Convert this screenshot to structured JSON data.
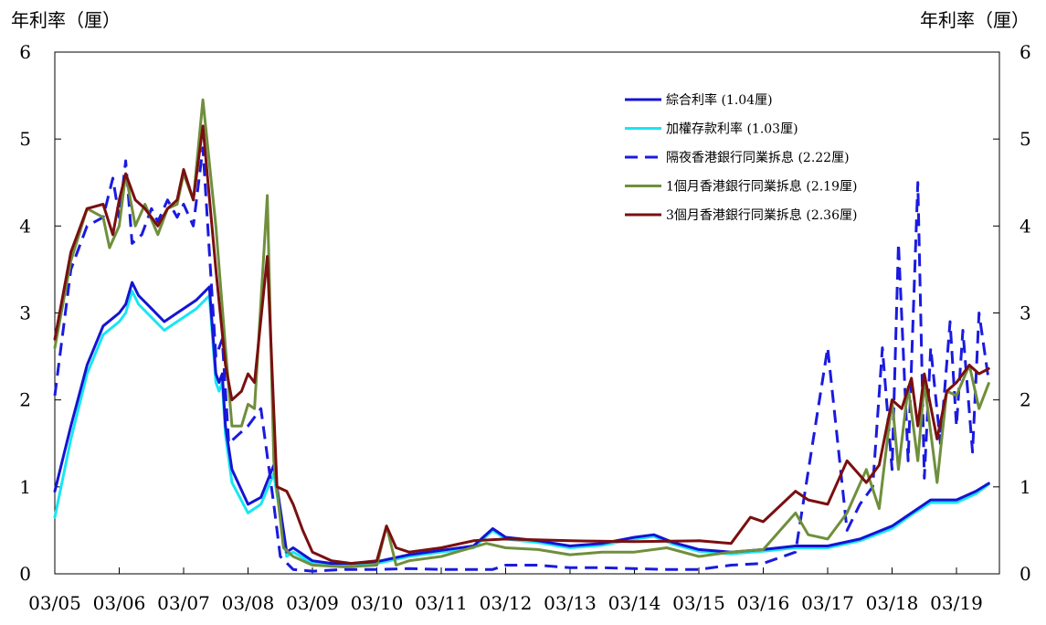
{
  "chart_data": {
    "type": "line",
    "ylabel_left": "年利率（厘）",
    "ylabel_right": "年利率（厘）",
    "ylim": [
      0,
      6
    ],
    "yticks": [
      0,
      1,
      2,
      3,
      4,
      5,
      6
    ],
    "xlim": [
      0,
      14.5
    ],
    "categories": [
      "03/05",
      "03/06",
      "03/07",
      "03/08",
      "03/09",
      "03/10",
      "03/11",
      "03/12",
      "03/13",
      "03/14",
      "03/15",
      "03/16",
      "03/17",
      "03/18",
      "03/19"
    ],
    "grid": false,
    "legend_position": "top-right",
    "colors": {
      "composite": "#1414d2",
      "weighted_deposit": "#18e6f4",
      "overnight": "#1a1ae0",
      "one_month": "#6f8f3c",
      "three_month": "#7a0f10"
    },
    "series": [
      {
        "name": "綜合利率 (1.04厘)",
        "key": "composite",
        "style": "solid",
        "x": [
          0,
          0.25,
          0.5,
          0.75,
          1.0,
          1.1,
          1.2,
          1.3,
          1.5,
          1.7,
          1.9,
          2.0,
          2.2,
          2.4,
          2.5,
          2.55,
          2.6,
          2.65,
          2.75,
          3.0,
          3.2,
          3.4,
          3.6,
          3.7,
          4.0,
          4.3,
          4.6,
          5.0,
          5.5,
          6.0,
          6.5,
          6.8,
          7.0,
          7.5,
          8.0,
          8.5,
          9.0,
          9.3,
          9.6,
          10.0,
          10.5,
          11.0,
          11.5,
          12.0,
          12.5,
          13.0,
          13.3,
          13.6,
          14.0,
          14.3,
          14.5
        ],
        "values": [
          0.95,
          1.7,
          2.4,
          2.85,
          3.0,
          3.1,
          3.35,
          3.2,
          3.05,
          2.9,
          3.0,
          3.05,
          3.15,
          3.3,
          2.3,
          2.2,
          2.3,
          1.7,
          1.2,
          0.8,
          0.88,
          1.25,
          0.25,
          0.3,
          0.15,
          0.12,
          0.12,
          0.14,
          0.22,
          0.27,
          0.32,
          0.52,
          0.42,
          0.38,
          0.32,
          0.35,
          0.42,
          0.45,
          0.36,
          0.28,
          0.25,
          0.28,
          0.32,
          0.32,
          0.4,
          0.55,
          0.7,
          0.85,
          0.85,
          0.95,
          1.04
        ]
      },
      {
        "name": "加權存款利率 (1.03厘)",
        "key": "weighted_deposit",
        "style": "solid",
        "x": [
          0,
          0.25,
          0.5,
          0.75,
          1.0,
          1.1,
          1.2,
          1.3,
          1.5,
          1.7,
          1.9,
          2.0,
          2.2,
          2.4,
          2.5,
          2.55,
          2.6,
          2.65,
          2.75,
          3.0,
          3.2,
          3.4,
          3.6,
          3.7,
          4.0,
          4.3,
          4.6,
          5.0,
          5.5,
          6.0,
          6.5,
          6.8,
          7.0,
          7.5,
          8.0,
          8.5,
          9.0,
          9.3,
          9.6,
          10.0,
          10.5,
          11.0,
          11.5,
          12.0,
          12.5,
          13.0,
          13.3,
          13.6,
          14.0,
          14.3,
          14.5
        ],
        "values": [
          0.65,
          1.55,
          2.3,
          2.75,
          2.9,
          3.0,
          3.25,
          3.1,
          2.95,
          2.8,
          2.9,
          2.95,
          3.05,
          3.2,
          2.2,
          2.1,
          2.2,
          1.6,
          1.05,
          0.7,
          0.8,
          1.15,
          0.2,
          0.25,
          0.12,
          0.1,
          0.1,
          0.12,
          0.2,
          0.25,
          0.3,
          0.5,
          0.4,
          0.36,
          0.3,
          0.33,
          0.4,
          0.43,
          0.34,
          0.26,
          0.23,
          0.26,
          0.3,
          0.3,
          0.38,
          0.52,
          0.68,
          0.82,
          0.82,
          0.92,
          1.03
        ]
      },
      {
        "name": "隔夜香港銀行同業拆息 (2.22厘)",
        "key": "overnight",
        "style": "dashed",
        "x": [
          0,
          0.25,
          0.5,
          0.75,
          0.9,
          1.0,
          1.1,
          1.2,
          1.35,
          1.5,
          1.6,
          1.75,
          1.9,
          2.0,
          2.15,
          2.3,
          2.5,
          2.6,
          2.7,
          2.85,
          3.0,
          3.2,
          3.4,
          3.5,
          3.7,
          4.0,
          4.5,
          5.0,
          5.5,
          6.0,
          6.5,
          6.8,
          7.0,
          7.5,
          8.0,
          8.5,
          9.0,
          9.5,
          10.0,
          10.5,
          11.0,
          11.5,
          12.0,
          12.3,
          12.5,
          12.7,
          12.85,
          13.0,
          13.1,
          13.25,
          13.4,
          13.5,
          13.6,
          13.75,
          13.9,
          14.0,
          14.1,
          14.25,
          14.35,
          14.5
        ],
        "values": [
          2.05,
          3.5,
          4.0,
          4.1,
          4.55,
          4.1,
          4.75,
          3.8,
          3.9,
          4.2,
          4.05,
          4.3,
          4.1,
          4.25,
          4.0,
          4.9,
          2.5,
          2.7,
          1.5,
          1.6,
          1.7,
          1.9,
          0.8,
          0.2,
          0.05,
          0.03,
          0.05,
          0.05,
          0.06,
          0.05,
          0.05,
          0.05,
          0.1,
          0.1,
          0.07,
          0.07,
          0.06,
          0.05,
          0.05,
          0.1,
          0.12,
          0.25,
          2.6,
          0.5,
          0.8,
          1.0,
          2.6,
          1.2,
          3.8,
          1.3,
          4.5,
          1.1,
          2.6,
          1.5,
          2.9,
          1.7,
          2.8,
          1.4,
          3.0,
          2.22
        ]
      },
      {
        "name": "1個月香港銀行同業拆息 (2.19厘)",
        "key": "one_month",
        "style": "solid",
        "x": [
          0,
          0.25,
          0.5,
          0.75,
          0.85,
          1.0,
          1.1,
          1.25,
          1.4,
          1.6,
          1.75,
          1.9,
          2.0,
          2.15,
          2.3,
          2.5,
          2.65,
          2.75,
          2.9,
          3.0,
          3.1,
          3.3,
          3.4,
          3.55,
          3.7,
          4.0,
          4.5,
          5.0,
          5.15,
          5.3,
          5.5,
          6.0,
          6.7,
          7.0,
          7.5,
          8.0,
          8.5,
          9.0,
          9.5,
          10.0,
          10.5,
          11.0,
          11.5,
          11.7,
          12.0,
          12.3,
          12.6,
          12.8,
          13.0,
          13.1,
          13.25,
          13.4,
          13.5,
          13.7,
          13.85,
          14.0,
          14.2,
          14.35,
          14.5
        ],
        "values": [
          2.6,
          3.6,
          4.2,
          4.1,
          3.75,
          4.0,
          4.6,
          4.0,
          4.25,
          3.9,
          4.2,
          4.25,
          4.6,
          4.3,
          5.45,
          4.0,
          2.6,
          1.7,
          1.7,
          1.95,
          1.9,
          4.35,
          1.3,
          0.3,
          0.2,
          0.1,
          0.08,
          0.1,
          0.55,
          0.1,
          0.15,
          0.2,
          0.35,
          0.3,
          0.28,
          0.22,
          0.25,
          0.25,
          0.3,
          0.2,
          0.25,
          0.28,
          0.7,
          0.45,
          0.4,
          0.7,
          1.2,
          0.75,
          2.0,
          1.2,
          2.15,
          1.3,
          2.2,
          1.05,
          2.1,
          2.05,
          2.4,
          1.9,
          2.19
        ]
      },
      {
        "name": "3個月香港銀行同業拆息 (2.36厘)",
        "key": "three_month",
        "style": "solid",
        "x": [
          0,
          0.25,
          0.5,
          0.75,
          0.9,
          1.0,
          1.1,
          1.25,
          1.4,
          1.6,
          1.75,
          1.9,
          2.0,
          2.15,
          2.3,
          2.5,
          2.65,
          2.75,
          2.9,
          3.0,
          3.1,
          3.3,
          3.45,
          3.6,
          3.7,
          3.85,
          4.0,
          4.3,
          4.6,
          5.0,
          5.15,
          5.3,
          5.5,
          6.0,
          6.5,
          7.0,
          8.0,
          9.0,
          10.0,
          10.5,
          10.8,
          11.0,
          11.5,
          11.7,
          12.0,
          12.3,
          12.6,
          12.8,
          13.0,
          13.15,
          13.3,
          13.4,
          13.5,
          13.7,
          13.85,
          14.0,
          14.2,
          14.35,
          14.5
        ],
        "values": [
          2.7,
          3.7,
          4.2,
          4.25,
          3.9,
          4.3,
          4.6,
          4.3,
          4.2,
          4.0,
          4.2,
          4.3,
          4.65,
          4.3,
          5.15,
          3.5,
          2.4,
          2.0,
          2.1,
          2.3,
          2.2,
          3.65,
          1.0,
          0.95,
          0.8,
          0.5,
          0.25,
          0.15,
          0.12,
          0.15,
          0.55,
          0.3,
          0.25,
          0.3,
          0.38,
          0.4,
          0.38,
          0.37,
          0.38,
          0.35,
          0.65,
          0.6,
          0.95,
          0.85,
          0.8,
          1.3,
          1.05,
          1.25,
          2.0,
          1.9,
          2.25,
          1.7,
          2.3,
          1.55,
          2.1,
          2.2,
          2.4,
          2.3,
          2.36
        ]
      }
    ]
  }
}
